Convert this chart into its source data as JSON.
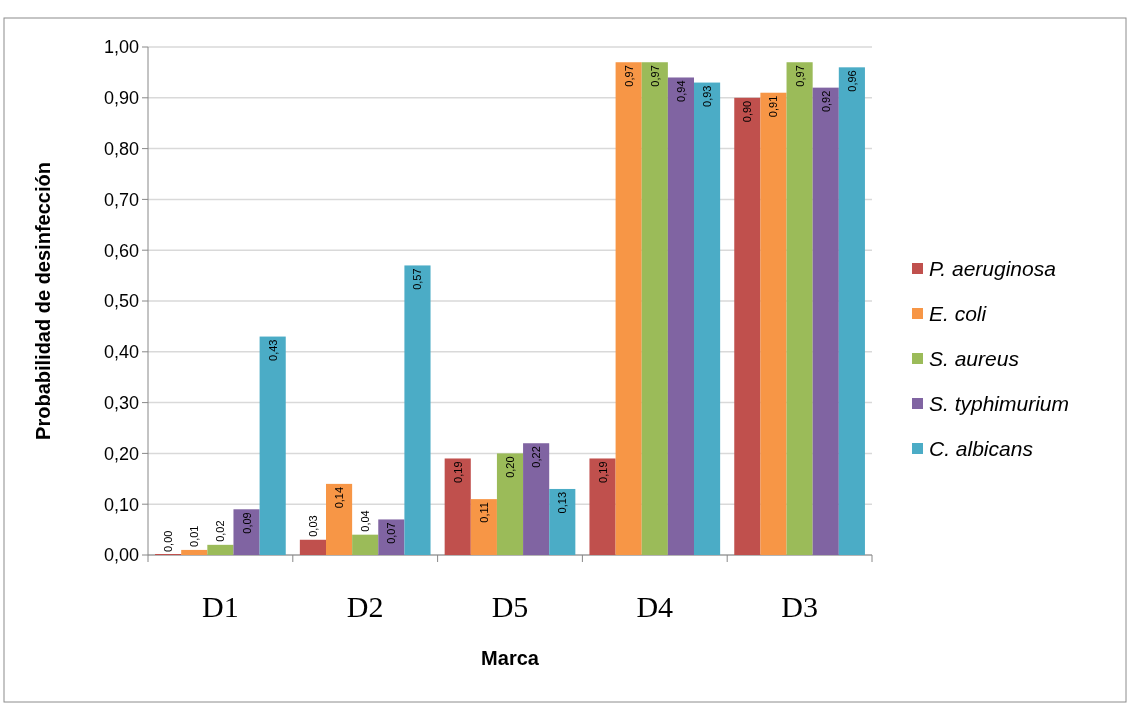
{
  "chart_data": {
    "type": "bar",
    "xlabel": "Marca",
    "ylabel": "Probabilidad de desinfección",
    "categories": [
      "D1",
      "D2",
      "D5",
      "D4",
      "D3"
    ],
    "series": [
      {
        "name": "P. aeruginosa",
        "color": "#c0504d",
        "values": [
          0.0,
          0.03,
          0.19,
          0.19,
          0.9
        ],
        "value_labels": [
          "0,00",
          "0,03",
          "0,19",
          "0,19",
          "0,90"
        ]
      },
      {
        "name": "E. coli",
        "color": "#f79646",
        "values": [
          0.01,
          0.14,
          0.11,
          0.97,
          0.91
        ],
        "value_labels": [
          "0,01",
          "0,14",
          "0,11",
          "0,97",
          "0,91"
        ]
      },
      {
        "name": "S. aureus",
        "color": "#9bbb59",
        "values": [
          0.02,
          0.04,
          0.2,
          0.97,
          0.97
        ],
        "value_labels": [
          "0,02",
          "0,04",
          "0,20",
          "0,97",
          "0,97"
        ]
      },
      {
        "name": "S. typhimurium",
        "color": "#8064a2",
        "values": [
          0.09,
          0.07,
          0.22,
          0.94,
          0.92
        ],
        "value_labels": [
          "0,09",
          "0,07",
          "0,22",
          "0,94",
          "0,92"
        ]
      },
      {
        "name": "C. albicans",
        "color": "#4bacc6",
        "values": [
          0.43,
          0.57,
          0.13,
          0.93,
          0.96
        ],
        "value_labels": [
          "0,43",
          "0,57",
          "0,13",
          "0,93",
          "0,96"
        ]
      }
    ],
    "ylim": [
      0,
      1
    ],
    "yticks": [
      {
        "value": 0,
        "label": "0,00"
      },
      {
        "value": 0.1,
        "label": "0,10"
      },
      {
        "value": 0.2,
        "label": "0,20"
      },
      {
        "value": 0.3,
        "label": "0,30"
      },
      {
        "value": 0.4,
        "label": "0,40"
      },
      {
        "value": 0.5,
        "label": "0,50"
      },
      {
        "value": 0.6,
        "label": "0,60"
      },
      {
        "value": 0.7,
        "label": "0,70"
      },
      {
        "value": 0.8,
        "label": "0,80"
      },
      {
        "value": 0.9,
        "label": "0,90"
      },
      {
        "value": 1,
        "label": "1,00"
      }
    ],
    "grid": "y",
    "legend": "right"
  }
}
